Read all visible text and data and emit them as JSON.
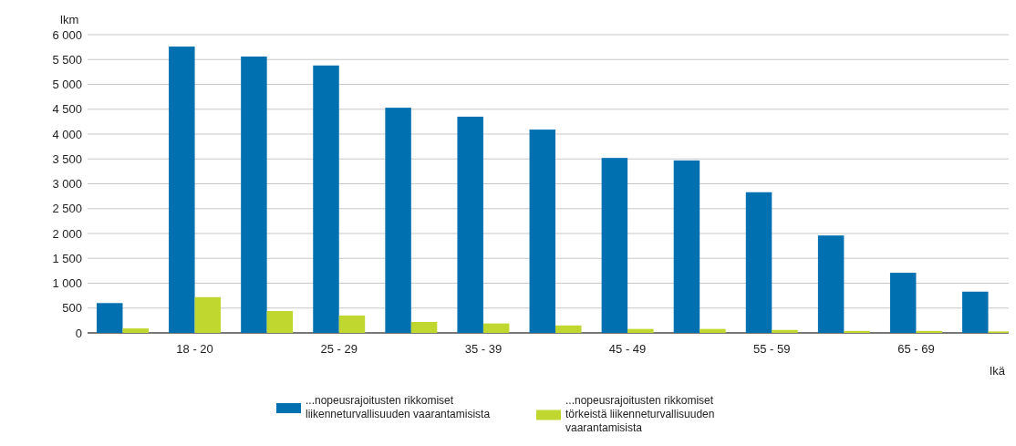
{
  "chart_data": {
    "type": "bar",
    "ylabel": "lkm",
    "xlabel": "Ikä",
    "categories": [
      null,
      "18 - 20",
      null,
      "25 - 29",
      null,
      "35 - 39",
      null,
      "45 - 49",
      null,
      "55 - 59",
      null,
      "65 - 69",
      null
    ],
    "series": [
      {
        "name": "...nopeusrajoitusten rikkomiset liikenneturvallisuuden vaarantamisista",
        "color": "#0070b0",
        "values": [
          600,
          5760,
          5560,
          5380,
          4530,
          4350,
          4090,
          3520,
          3470,
          2830,
          1960,
          1210,
          830
        ]
      },
      {
        "name": "...nopeusrajoitusten rikkomiset törkeistä liikenneturvallisuuden vaarantamisista",
        "color": "#c0d72f",
        "values": [
          90,
          720,
          440,
          350,
          220,
          190,
          150,
          80,
          80,
          60,
          40,
          40,
          30
        ]
      }
    ],
    "ylim": [
      0,
      6000
    ],
    "yticks": [
      {
        "value": 0,
        "label": "0"
      },
      {
        "value": 500,
        "label": "500"
      },
      {
        "value": 1000,
        "label": "1 000"
      },
      {
        "value": 1500,
        "label": "1 500"
      },
      {
        "value": 2000,
        "label": "2 000"
      },
      {
        "value": 2500,
        "label": "2 500"
      },
      {
        "value": 3000,
        "label": "3 000"
      },
      {
        "value": 3500,
        "label": "3 500"
      },
      {
        "value": 4000,
        "label": "4 000"
      },
      {
        "value": 4500,
        "label": "4 500"
      },
      {
        "value": 5000,
        "label": "5 000"
      },
      {
        "value": 5500,
        "label": "5 500"
      },
      {
        "value": 6000,
        "label": "6 000"
      }
    ],
    "grid": "y",
    "legend": "bottom"
  }
}
